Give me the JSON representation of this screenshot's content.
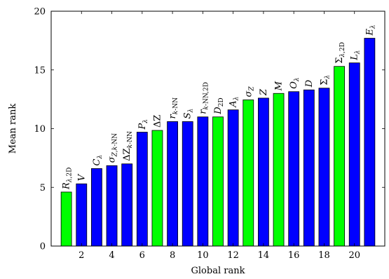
{
  "chart_data": {
    "type": "bar",
    "xlabel": "Global rank",
    "ylabel": "Mean rank",
    "ylim": [
      0,
      20
    ],
    "xlim": [
      0,
      22
    ],
    "yticks": [
      0,
      5,
      10,
      15,
      20
    ],
    "xticks": [
      2,
      4,
      6,
      8,
      10,
      12,
      14,
      16,
      18,
      20
    ],
    "grid": false,
    "colors": {
      "green": "#00ff00",
      "blue": "#0000ff",
      "edge": "#000000"
    },
    "bars": [
      {
        "x": 1,
        "value": 4.6,
        "color": "green",
        "label": {
          "main": "R",
          "subParts": [
            [
              "λ",
              "i"
            ],
            [
              ",2D",
              "n"
            ]
          ]
        }
      },
      {
        "x": 2,
        "value": 5.3,
        "color": "blue",
        "label": {
          "main": "V",
          "subParts": []
        }
      },
      {
        "x": 3,
        "value": 6.6,
        "color": "blue",
        "label": {
          "main": "C",
          "subParts": [
            [
              "λ",
              "i"
            ]
          ]
        }
      },
      {
        "x": 4,
        "value": 6.85,
        "color": "blue",
        "label": {
          "main": "σ",
          "subParts": [
            [
              "Z",
              "i"
            ],
            [
              ",",
              "n"
            ],
            [
              "k",
              "i"
            ],
            [
              "-NN",
              "n"
            ]
          ]
        }
      },
      {
        "x": 5,
        "value": 7.0,
        "color": "blue",
        "label": {
          "main": "ΔZ",
          "subParts": [
            [
              "k",
              "i"
            ],
            [
              "-NN",
              "n"
            ]
          ]
        }
      },
      {
        "x": 6,
        "value": 9.7,
        "color": "blue",
        "label": {
          "main": "P",
          "subParts": [
            [
              "λ",
              "i"
            ]
          ]
        }
      },
      {
        "x": 7,
        "value": 9.85,
        "color": "green",
        "label": {
          "main": "ΔZ",
          "subParts": []
        }
      },
      {
        "x": 8,
        "value": 10.6,
        "color": "blue",
        "label": {
          "main": "r",
          "subParts": [
            [
              "k",
              "i"
            ],
            [
              "-NN",
              "n"
            ]
          ]
        }
      },
      {
        "x": 9,
        "value": 10.6,
        "color": "blue",
        "label": {
          "main": "S",
          "subParts": [
            [
              "λ",
              "i"
            ]
          ]
        }
      },
      {
        "x": 10,
        "value": 11.0,
        "color": "blue",
        "label": {
          "main": "r",
          "subParts": [
            [
              "k",
              "i"
            ],
            [
              "-NN,2D",
              "n"
            ]
          ]
        }
      },
      {
        "x": 11,
        "value": 11.0,
        "color": "green",
        "label": {
          "main": "D",
          "subParts": [
            [
              "2D",
              "n"
            ]
          ]
        }
      },
      {
        "x": 12,
        "value": 11.6,
        "color": "blue",
        "label": {
          "main": "A",
          "subParts": [
            [
              "λ",
              "i"
            ]
          ]
        }
      },
      {
        "x": 13,
        "value": 12.45,
        "color": "green",
        "label": {
          "main": "σ",
          "subParts": [
            [
              "Z",
              "i"
            ]
          ]
        }
      },
      {
        "x": 14,
        "value": 12.6,
        "color": "blue",
        "label": {
          "main": "Z",
          "subParts": []
        }
      },
      {
        "x": 15,
        "value": 13.0,
        "color": "green",
        "label": {
          "main": "M",
          "subParts": []
        }
      },
      {
        "x": 16,
        "value": 13.15,
        "color": "blue",
        "label": {
          "main": "O",
          "subParts": [
            [
              "λ",
              "i"
            ]
          ]
        }
      },
      {
        "x": 17,
        "value": 13.3,
        "color": "blue",
        "label": {
          "main": "D",
          "subParts": []
        }
      },
      {
        "x": 18,
        "value": 13.45,
        "color": "blue",
        "label": {
          "main": "Σ",
          "subParts": [
            [
              "λ",
              "i"
            ]
          ]
        }
      },
      {
        "x": 19,
        "value": 15.3,
        "color": "green",
        "label": {
          "main": "Σ",
          "subParts": [
            [
              "λ",
              "i"
            ],
            [
              ",2D",
              "n"
            ]
          ]
        }
      },
      {
        "x": 20,
        "value": 15.6,
        "color": "blue",
        "label": {
          "main": "L",
          "subParts": [
            [
              "λ",
              "i"
            ]
          ]
        }
      },
      {
        "x": 21,
        "value": 17.7,
        "color": "blue",
        "label": {
          "main": "E",
          "subParts": [
            [
              "λ",
              "i"
            ]
          ]
        }
      }
    ]
  }
}
